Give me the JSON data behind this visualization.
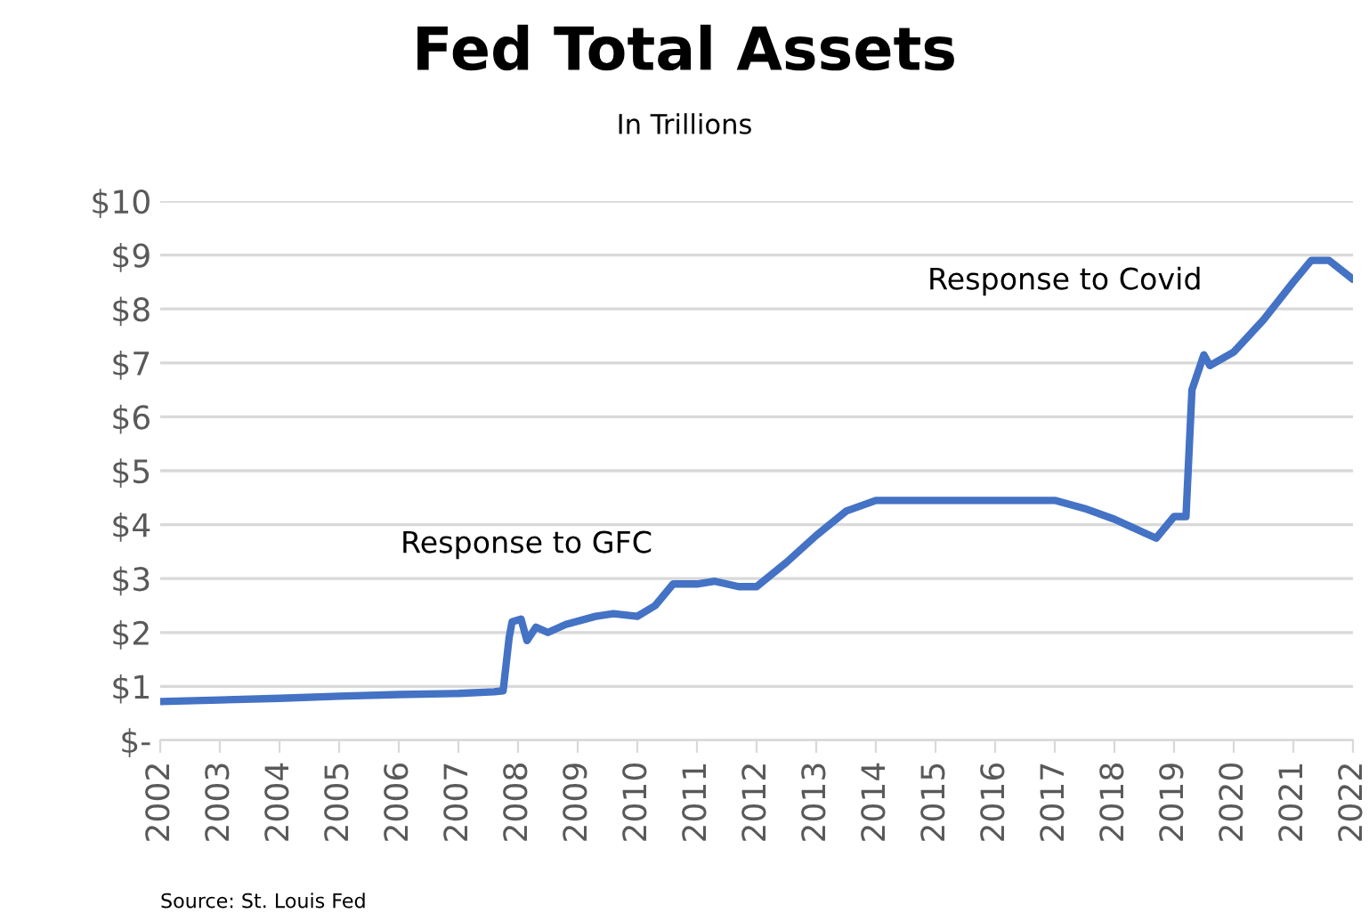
{
  "chart_data": {
    "type": "line",
    "title": "Fed Total Assets",
    "subtitle": "In Trillions",
    "x": [
      2002.0,
      2003.0,
      2004.0,
      2005.0,
      2006.0,
      2007.0,
      2007.6,
      2007.75,
      2007.85,
      2007.9,
      2008.05,
      2008.15,
      2008.3,
      2008.5,
      2008.8,
      2009.3,
      2009.6,
      2010.0,
      2010.3,
      2010.6,
      2011.0,
      2011.3,
      2011.7,
      2012.0,
      2012.5,
      2013.0,
      2013.5,
      2014.0,
      2014.5,
      2016.0,
      2017.0,
      2017.5,
      2018.0,
      2018.5,
      2018.7,
      2019.0,
      2019.2,
      2019.3,
      2019.5,
      2019.6,
      2020.0,
      2020.5,
      2021.0,
      2021.3,
      2021.6,
      2022.0
    ],
    "series": [
      {
        "color": "#4472c4",
        "values": [
          0.72,
          0.75,
          0.78,
          0.82,
          0.85,
          0.87,
          0.9,
          0.92,
          1.9,
          2.2,
          2.25,
          1.85,
          2.1,
          2.0,
          2.15,
          2.3,
          2.35,
          2.3,
          2.5,
          2.9,
          2.9,
          2.95,
          2.85,
          2.85,
          3.3,
          3.8,
          4.25,
          4.45,
          4.45,
          4.45,
          4.45,
          4.3,
          4.1,
          3.85,
          3.75,
          4.15,
          4.15,
          6.5,
          7.15,
          6.95,
          7.2,
          7.8,
          8.5,
          8.9,
          8.9,
          8.55
        ]
      }
    ],
    "xlim": [
      2002,
      2022
    ],
    "xticks": [
      2002,
      2003,
      2004,
      2005,
      2006,
      2007,
      2008,
      2009,
      2010,
      2011,
      2012,
      2013,
      2014,
      2015,
      2016,
      2017,
      2018,
      2019,
      2020,
      2021,
      2022
    ],
    "ylim": [
      0,
      10
    ],
    "yticks": [
      {
        "value": 0,
        "label": "$-"
      },
      {
        "value": 1,
        "label": "$1"
      },
      {
        "value": 2,
        "label": "$2"
      },
      {
        "value": 3,
        "label": "$3"
      },
      {
        "value": 4,
        "label": "$4"
      },
      {
        "value": 5,
        "label": "$5"
      },
      {
        "value": 6,
        "label": "$6"
      },
      {
        "value": 7,
        "label": "$7"
      },
      {
        "value": 8,
        "label": "$8"
      },
      {
        "value": 9,
        "label": "$9"
      },
      {
        "value": 10,
        "label": "$10"
      }
    ],
    "grid": "y",
    "annotations": [
      "Response to GFC",
      "Response to Covid",
      "Source: St. Louis Fed"
    ]
  }
}
